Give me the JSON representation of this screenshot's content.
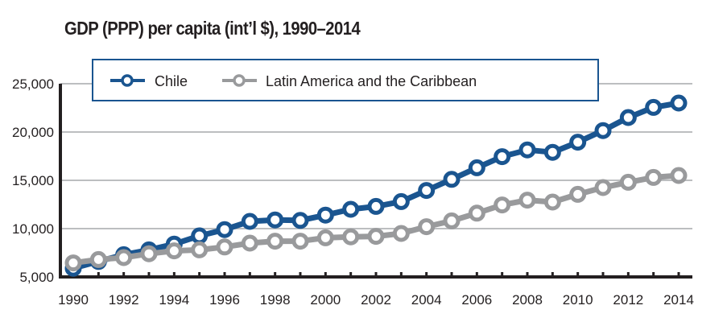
{
  "chart_data": {
    "type": "line",
    "title": "GDP (PPP) per capita (int’l $), 1990–2014",
    "xlabel": "",
    "ylabel": "",
    "x": [
      1990,
      1991,
      1992,
      1993,
      1994,
      1995,
      1996,
      1997,
      1998,
      1999,
      2000,
      2001,
      2002,
      2003,
      2004,
      2005,
      2006,
      2007,
      2008,
      2009,
      2010,
      2011,
      2012,
      2013,
      2014
    ],
    "x_tick_labels": [
      "1990",
      "1992",
      "1994",
      "1996",
      "1998",
      "2000",
      "2002",
      "2004",
      "2006",
      "2008",
      "2010",
      "2012",
      "2014"
    ],
    "x_tick_values": [
      1990,
      1992,
      1994,
      1996,
      1998,
      2000,
      2002,
      2004,
      2006,
      2008,
      2010,
      2012,
      2014
    ],
    "xlim": [
      1990,
      2014
    ],
    "ylim": [
      5000,
      25000
    ],
    "y_tick_values": [
      5000,
      10000,
      15000,
      20000,
      25000
    ],
    "y_tick_labels": [
      "5,000",
      "10,000",
      "15,000",
      "20,000",
      "25,000"
    ],
    "grid": "horizontal",
    "legend_position": "top-center",
    "series": [
      {
        "name": "Chile",
        "color": "#1a5590",
        "values": [
          5900,
          6600,
          7300,
          7800,
          8400,
          9250,
          9900,
          10750,
          10900,
          10850,
          11400,
          12000,
          12300,
          12800,
          13950,
          15100,
          16300,
          17450,
          18150,
          17900,
          18950,
          20150,
          21500,
          22550,
          23000
        ]
      },
      {
        "name": "Latin America and the Caribbean",
        "color": "#999a9c",
        "values": [
          6450,
          6800,
          7000,
          7400,
          7700,
          7800,
          8100,
          8500,
          8700,
          8700,
          9050,
          9150,
          9200,
          9500,
          10200,
          10800,
          11600,
          12450,
          12950,
          12750,
          13550,
          14250,
          14800,
          15300,
          15500
        ]
      }
    ]
  },
  "legend": {
    "items": [
      {
        "label": "Chile"
      },
      {
        "label": "Latin America and the Caribbean"
      }
    ]
  }
}
